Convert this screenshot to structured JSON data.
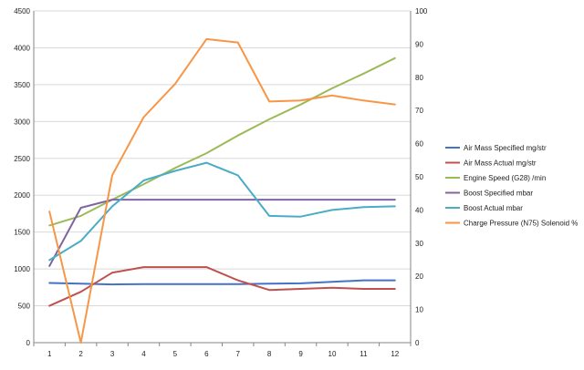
{
  "chart_data": {
    "type": "line",
    "title": "",
    "xlabel": "",
    "ylabel": "",
    "y2label": "",
    "categories": [
      "1",
      "2",
      "3",
      "4",
      "5",
      "6",
      "7",
      "8",
      "9",
      "10",
      "11",
      "12"
    ],
    "ylim": [
      0,
      4500
    ],
    "y2lim": [
      0,
      100
    ],
    "yticks": [
      0,
      500,
      1000,
      1500,
      2000,
      2500,
      3000,
      3500,
      4000,
      4500
    ],
    "y2ticks": [
      0,
      10,
      20,
      30,
      40,
      50,
      60,
      70,
      80,
      90,
      100
    ],
    "grid": "horizontal major gridlines",
    "legend_position": "right",
    "series": [
      {
        "name": "Air Mass Specified  mg/str",
        "axis": "left",
        "color": "#4472c4",
        "values": [
          810,
          800,
          790,
          795,
          795,
          795,
          795,
          800,
          805,
          825,
          845,
          845
        ]
      },
      {
        "name": "Air Mass Actual  mg/str",
        "axis": "left",
        "color": "#c0504d",
        "values": [
          500,
          690,
          950,
          1025,
          1025,
          1025,
          845,
          715,
          730,
          745,
          730,
          730
        ]
      },
      {
        "name": "Engine Speed (G28)  /min",
        "axis": "left",
        "color": "#9bbb59",
        "values": [
          1590,
          1720,
          1940,
          2150,
          2370,
          2570,
          2810,
          3030,
          3230,
          3450,
          3650,
          3860
        ]
      },
      {
        "name": "Boost Specified  mbar",
        "axis": "left",
        "color": "#8064a2",
        "values": [
          1040,
          1830,
          1940,
          1940,
          1940,
          1940,
          1940,
          1940,
          1940,
          1940,
          1940,
          1940
        ]
      },
      {
        "name": "Boost Actual  mbar",
        "axis": "left",
        "color": "#4bacc6",
        "values": [
          1120,
          1380,
          1850,
          2200,
          2330,
          2440,
          2270,
          1720,
          1710,
          1800,
          1840,
          1850
        ]
      },
      {
        "name": "Charge Pressure (N75) Solenoid  %",
        "axis": "right",
        "color": "#f79646",
        "values": [
          39.5,
          0,
          50.5,
          68,
          78,
          91.5,
          90.5,
          72.7,
          73,
          74.5,
          73,
          71.8
        ]
      }
    ]
  }
}
